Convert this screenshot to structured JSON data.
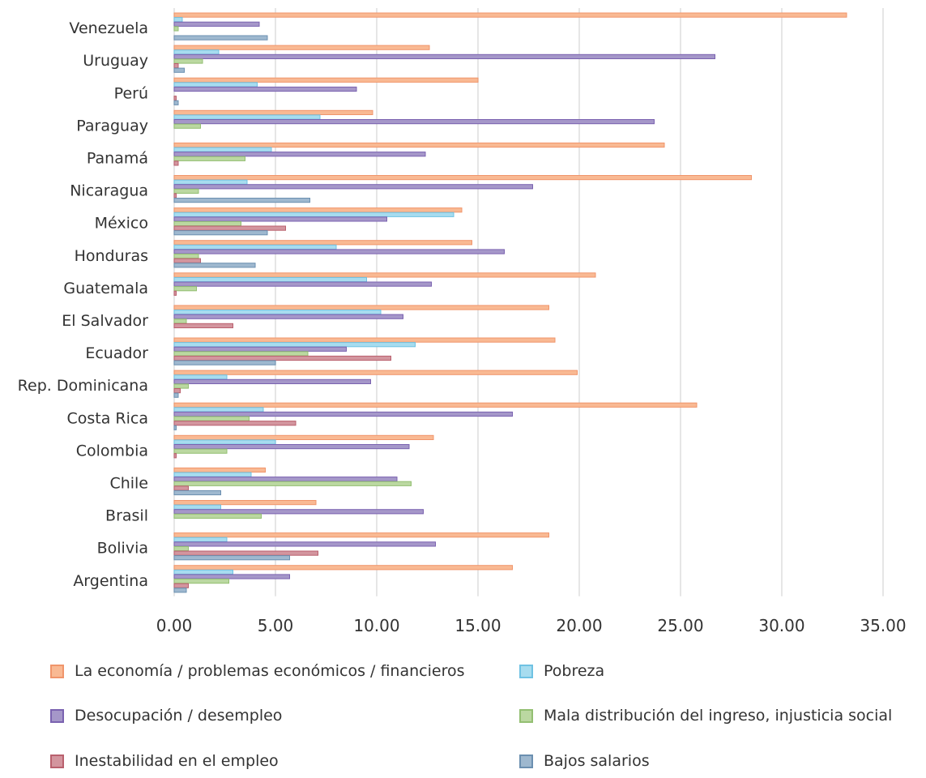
{
  "chart_data": {
    "type": "bar",
    "orientation": "horizontal",
    "title": "",
    "xlabel": "",
    "ylabel": "",
    "xlim": [
      0,
      35
    ],
    "x_ticks": [
      "0.00",
      "5.00",
      "10.00",
      "15.00",
      "20.00",
      "25.00",
      "30.00",
      "35.00"
    ],
    "grid": "vertical",
    "legend_position": "bottom",
    "categories": [
      "Venezuela",
      "Uruguay",
      "Perú",
      "Paraguay",
      "Panamá",
      "Nicaragua",
      "México",
      "Honduras",
      "Guatemala",
      "El Salvador",
      "Ecuador",
      "Rep. Dominicana",
      "Costa Rica",
      "Colombia",
      "Chile",
      "Brasil",
      "Bolivia",
      "Argentina"
    ],
    "series": [
      {
        "name": "La economía / problemas económicos / financieros",
        "fill": "#f9b993",
        "stroke": "#f0956b",
        "values": [
          33.2,
          12.6,
          15.0,
          9.8,
          24.2,
          28.5,
          14.2,
          14.7,
          20.8,
          18.5,
          18.8,
          19.9,
          25.8,
          12.8,
          4.5,
          7.0,
          18.5,
          16.7
        ]
      },
      {
        "name": "Pobreza",
        "fill": "#a7dcef",
        "stroke": "#6fc2e3",
        "values": [
          0.4,
          2.2,
          4.1,
          7.2,
          4.8,
          3.6,
          13.8,
          8.0,
          9.5,
          10.2,
          11.9,
          2.6,
          4.4,
          5.0,
          3.8,
          2.3,
          2.6,
          2.9
        ]
      },
      {
        "name": "Desocupación / desempleo",
        "fill": "#a597c9",
        "stroke": "#7a62b0",
        "values": [
          4.2,
          26.7,
          9.0,
          23.7,
          12.4,
          17.7,
          10.5,
          16.3,
          12.7,
          11.3,
          8.5,
          9.7,
          16.7,
          11.6,
          11.0,
          12.3,
          12.9,
          5.7
        ]
      },
      {
        "name": "Mala distribución del ingreso, injusticia social",
        "fill": "#bbd8a1",
        "stroke": "#93bf72",
        "values": [
          0.2,
          1.4,
          0.0,
          1.3,
          3.5,
          1.2,
          3.3,
          1.2,
          1.1,
          0.6,
          6.6,
          0.7,
          3.7,
          2.6,
          11.7,
          4.3,
          0.7,
          2.7
        ]
      },
      {
        "name": "Inestabilidad en el empleo",
        "fill": "#d3959e",
        "stroke": "#b9606d",
        "values": [
          0.0,
          0.2,
          0.1,
          0.0,
          0.2,
          0.1,
          5.5,
          1.3,
          0.1,
          2.9,
          10.7,
          0.3,
          6.0,
          0.1,
          0.7,
          0.0,
          7.1,
          0.7
        ]
      },
      {
        "name": "Bajos salarios",
        "fill": "#9eb8cf",
        "stroke": "#6b8fb0",
        "values": [
          4.6,
          0.5,
          0.2,
          0.0,
          0.0,
          6.7,
          4.6,
          4.0,
          0.0,
          0.0,
          5.0,
          0.2,
          0.1,
          0.0,
          2.3,
          0.0,
          5.7,
          0.6
        ]
      }
    ]
  }
}
